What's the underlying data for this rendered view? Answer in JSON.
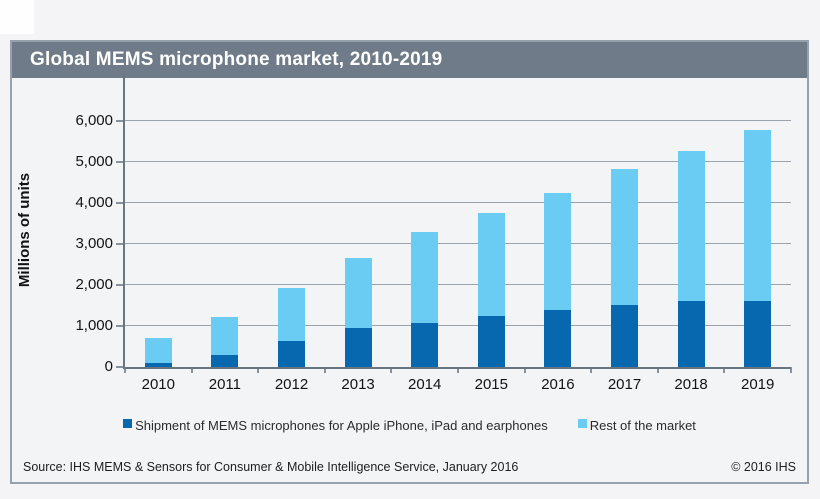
{
  "header": {
    "title": "Global MEMS microphone market, 2010-2019"
  },
  "chart_data": {
    "type": "bar",
    "stacked": true,
    "title": "Global MEMS microphone market, 2010-2019",
    "xlabel": "",
    "ylabel": "Millions of units",
    "categories": [
      "2010",
      "2011",
      "2012",
      "2013",
      "2014",
      "2015",
      "2016",
      "2017",
      "2018",
      "2019"
    ],
    "series": [
      {
        "name": "Shipment of MEMS microphones for Apple iPhone, iPad and earphones",
        "color": "#0768b0",
        "values": [
          100,
          300,
          640,
          950,
          1070,
          1250,
          1400,
          1520,
          1600,
          1620
        ]
      },
      {
        "name": "Rest of the market",
        "color": "#6bccf3",
        "values": [
          600,
          930,
          1280,
          1700,
          2210,
          2500,
          2840,
          3300,
          3660,
          4140
        ]
      }
    ],
    "stack_totals": [
      700,
      1230,
      1920,
      2650,
      3280,
      3750,
      4240,
      4820,
      5260,
      5760
    ],
    "ylim": [
      0,
      6500
    ],
    "yticks": [
      0,
      1000,
      2000,
      3000,
      4000,
      5000,
      6000
    ],
    "ytick_labels": [
      "0",
      "1,000",
      "2,000",
      "3,000",
      "4,000",
      "5,000",
      "6,000"
    ],
    "grid": true,
    "legend_position": "bottom"
  },
  "footer": {
    "source": "Source: IHS MEMS & Sensors for Consumer & Mobile Intelligence Service, January 2016",
    "copyright": "© 2016 IHS"
  }
}
